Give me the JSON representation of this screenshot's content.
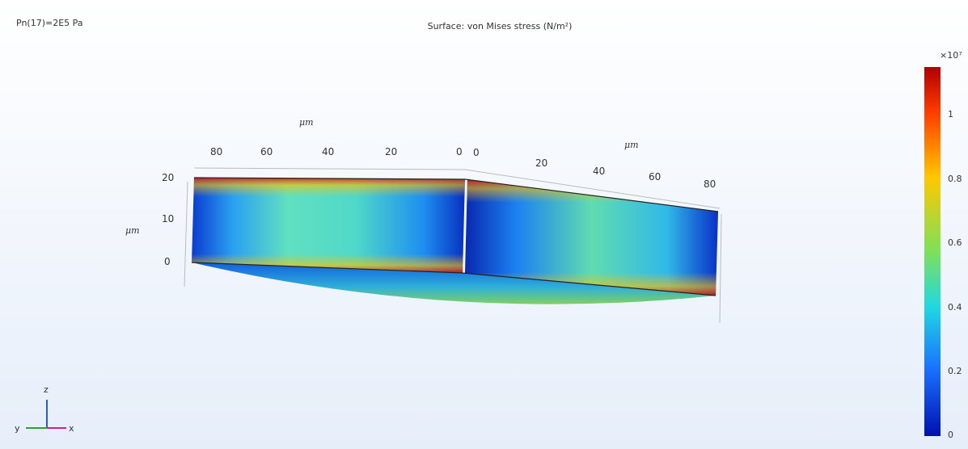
{
  "header": {
    "parameter": "Pn(17)=2E5 Pa",
    "title": "Surface: von Mises stress (N/m²)"
  },
  "colorbar": {
    "multiplier": "×10⁷",
    "ticks": [
      "1",
      "0.8",
      "0.6",
      "0.4",
      "0.2",
      "0"
    ]
  },
  "axes": {
    "left": {
      "unit": "μm",
      "ticks": [
        "80",
        "60",
        "40",
        "20",
        "0"
      ]
    },
    "right": {
      "unit": "μm",
      "ticks": [
        "0",
        "20",
        "40",
        "60",
        "80"
      ]
    },
    "vertical": {
      "unit": "μm",
      "ticks": [
        "20",
        "10",
        "0"
      ]
    }
  },
  "triad": {
    "z": "z",
    "y": "y",
    "x": "x"
  }
}
